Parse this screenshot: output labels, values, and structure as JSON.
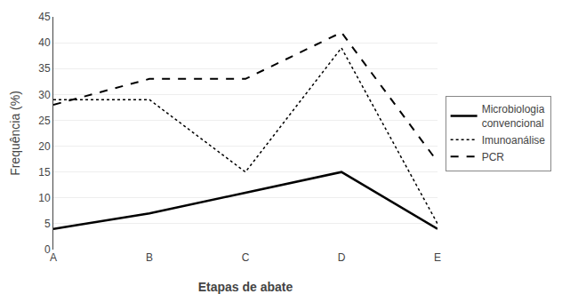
{
  "chart_data": {
    "type": "line",
    "categories": [
      "A",
      "B",
      "C",
      "D",
      "E"
    ],
    "series": [
      {
        "name": "Microbiologia\nconvencional",
        "color": "#000000",
        "line_style": "solid",
        "values": [
          4,
          7,
          11,
          15,
          4
        ]
      },
      {
        "name": "Imunoanálise",
        "color": "#000000",
        "line_style": "dot",
        "values": [
          29,
          29,
          15,
          39,
          5
        ]
      },
      {
        "name": "PCR",
        "color": "#000000",
        "line_style": "dash",
        "values": [
          28,
          33,
          33,
          42,
          17
        ]
      }
    ],
    "xlabel": "Etapas de abate",
    "ylabel": "Frequência (%)",
    "ylim": [
      0,
      45
    ],
    "yticks": [
      0,
      5,
      10,
      15,
      20,
      25,
      30,
      35,
      40,
      45
    ],
    "grid": true,
    "legend": "right"
  }
}
